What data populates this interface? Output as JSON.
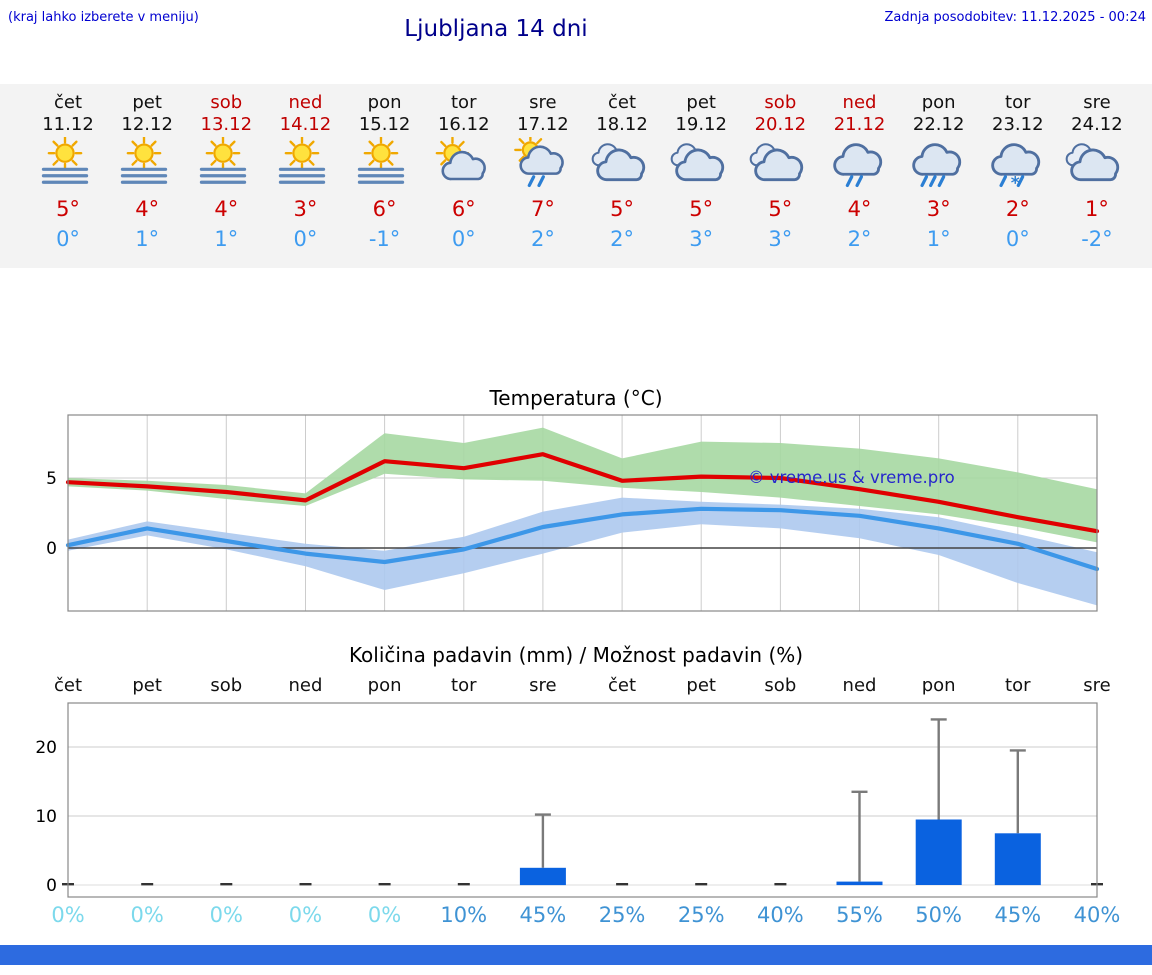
{
  "header": {
    "note": "(kraj lahko izberete v meniju)",
    "title": "Ljubljana 14 dni",
    "updated": "Zadnja posodobitev: 11.12.2025 - 00:24"
  },
  "colors": {
    "link_blue": "#0000d0",
    "title_blue": "#00008b",
    "temp_high": "#cc0000",
    "temp_low": "#3d9bf0",
    "weekend_red": "#c00000",
    "bar_blue": "#0a62e0",
    "percent_low": "#7cd9ec",
    "percent_high": "#3f93d4",
    "footer_bar": "#2d6be0",
    "watermark_blue": "#2626cc"
  },
  "forecast": {
    "days": [
      {
        "name": "čet",
        "date": "11.12",
        "weekend": false,
        "icon": "sun-fog",
        "high": "5°",
        "low": "0°"
      },
      {
        "name": "pet",
        "date": "12.12",
        "weekend": false,
        "icon": "sun-fog",
        "high": "4°",
        "low": "1°"
      },
      {
        "name": "sob",
        "date": "13.12",
        "weekend": true,
        "icon": "sun-fog",
        "high": "4°",
        "low": "1°"
      },
      {
        "name": "ned",
        "date": "14.12",
        "weekend": true,
        "icon": "sun-fog",
        "high": "3°",
        "low": "0°"
      },
      {
        "name": "pon",
        "date": "15.12",
        "weekend": false,
        "icon": "sun-fog",
        "high": "6°",
        "low": "-1°"
      },
      {
        "name": "tor",
        "date": "16.12",
        "weekend": false,
        "icon": "partly-cloudy",
        "high": "6°",
        "low": "0°"
      },
      {
        "name": "sre",
        "date": "17.12",
        "weekend": false,
        "icon": "partly-cloudy-rain",
        "high": "7°",
        "low": "2°"
      },
      {
        "name": "čet",
        "date": "18.12",
        "weekend": false,
        "icon": "cloudy",
        "high": "5°",
        "low": "2°"
      },
      {
        "name": "pet",
        "date": "19.12",
        "weekend": false,
        "icon": "cloudy",
        "high": "5°",
        "low": "3°"
      },
      {
        "name": "sob",
        "date": "20.12",
        "weekend": true,
        "icon": "cloudy",
        "high": "5°",
        "low": "3°"
      },
      {
        "name": "ned",
        "date": "21.12",
        "weekend": true,
        "icon": "rain-light",
        "high": "4°",
        "low": "2°"
      },
      {
        "name": "pon",
        "date": "22.12",
        "weekend": false,
        "icon": "rain",
        "high": "3°",
        "low": "1°"
      },
      {
        "name": "tor",
        "date": "23.12",
        "weekend": false,
        "icon": "sleet",
        "high": "2°",
        "low": "0°"
      },
      {
        "name": "sre",
        "date": "24.12",
        "weekend": false,
        "icon": "cloudy",
        "high": "1°",
        "low": "-2°"
      }
    ]
  },
  "chart_data": [
    {
      "type": "line",
      "title": "Temperatura (°C)",
      "watermark": "© vreme.us & vreme.pro",
      "categories": [
        "čet 11.12",
        "pet 12.12",
        "sob 13.12",
        "ned 14.12",
        "pon 15.12",
        "tor 16.12",
        "sre 17.12",
        "čet 18.12",
        "pet 19.12",
        "sob 20.12",
        "ned 21.12",
        "pon 22.12",
        "tor 23.12",
        "sre 24.12"
      ],
      "yticks": [
        0,
        5
      ],
      "ylim": [
        -4.5,
        9.5
      ],
      "grid": true,
      "series": [
        {
          "name": "max-temperature",
          "color": "#e00000",
          "values": [
            4.7,
            4.4,
            4.0,
            3.4,
            6.2,
            5.7,
            6.7,
            4.8,
            5.1,
            5.0,
            4.2,
            3.3,
            2.2,
            1.2
          ]
        },
        {
          "name": "min-temperature",
          "color": "#3d97e8",
          "values": [
            0.2,
            1.4,
            0.5,
            -0.4,
            -1.0,
            -0.1,
            1.5,
            2.4,
            2.8,
            2.7,
            2.3,
            1.4,
            0.3,
            -1.5
          ]
        }
      ],
      "bands": [
        {
          "name": "max-range",
          "color": "#a6d8a2",
          "upper": [
            5.0,
            4.8,
            4.5,
            3.9,
            8.2,
            7.5,
            8.6,
            6.4,
            7.6,
            7.5,
            7.1,
            6.4,
            5.4,
            4.2
          ],
          "lower": [
            4.4,
            4.1,
            3.5,
            3.0,
            5.3,
            4.9,
            4.8,
            4.3,
            4.0,
            3.6,
            3.0,
            2.4,
            1.5,
            0.4
          ]
        },
        {
          "name": "min-range",
          "color": "#adc9ee",
          "upper": [
            0.6,
            1.9,
            1.1,
            0.3,
            -0.2,
            0.8,
            2.6,
            3.6,
            3.3,
            3.1,
            2.8,
            2.2,
            1.0,
            -0.3
          ],
          "lower": [
            -0.2,
            0.9,
            -0.1,
            -1.3,
            -3.0,
            -1.8,
            -0.4,
            1.1,
            1.7,
            1.4,
            0.7,
            -0.5,
            -2.5,
            -4.1
          ]
        }
      ]
    },
    {
      "type": "bar",
      "title": "Količina padavin (mm) / Možnost padavin (%)",
      "categories": [
        "čet",
        "pet",
        "sob",
        "ned",
        "pon",
        "tor",
        "sre",
        "čet",
        "pet",
        "sob",
        "ned",
        "pon",
        "tor",
        "sre"
      ],
      "values_mm": [
        0,
        0,
        0,
        0,
        0,
        0,
        2.5,
        0,
        0,
        0,
        0.5,
        9.5,
        7.5,
        0
      ],
      "whisker_max_mm": [
        0,
        0,
        0,
        0,
        0,
        0,
        10.2,
        0,
        0,
        0,
        13.5,
        24,
        19.5,
        0
      ],
      "probability_pct": [
        0,
        0,
        0,
        0,
        0,
        10,
        45,
        25,
        25,
        40,
        55,
        50,
        45,
        40
      ],
      "yticks": [
        0,
        10,
        20
      ],
      "ylim": [
        0,
        26.4
      ]
    }
  ]
}
